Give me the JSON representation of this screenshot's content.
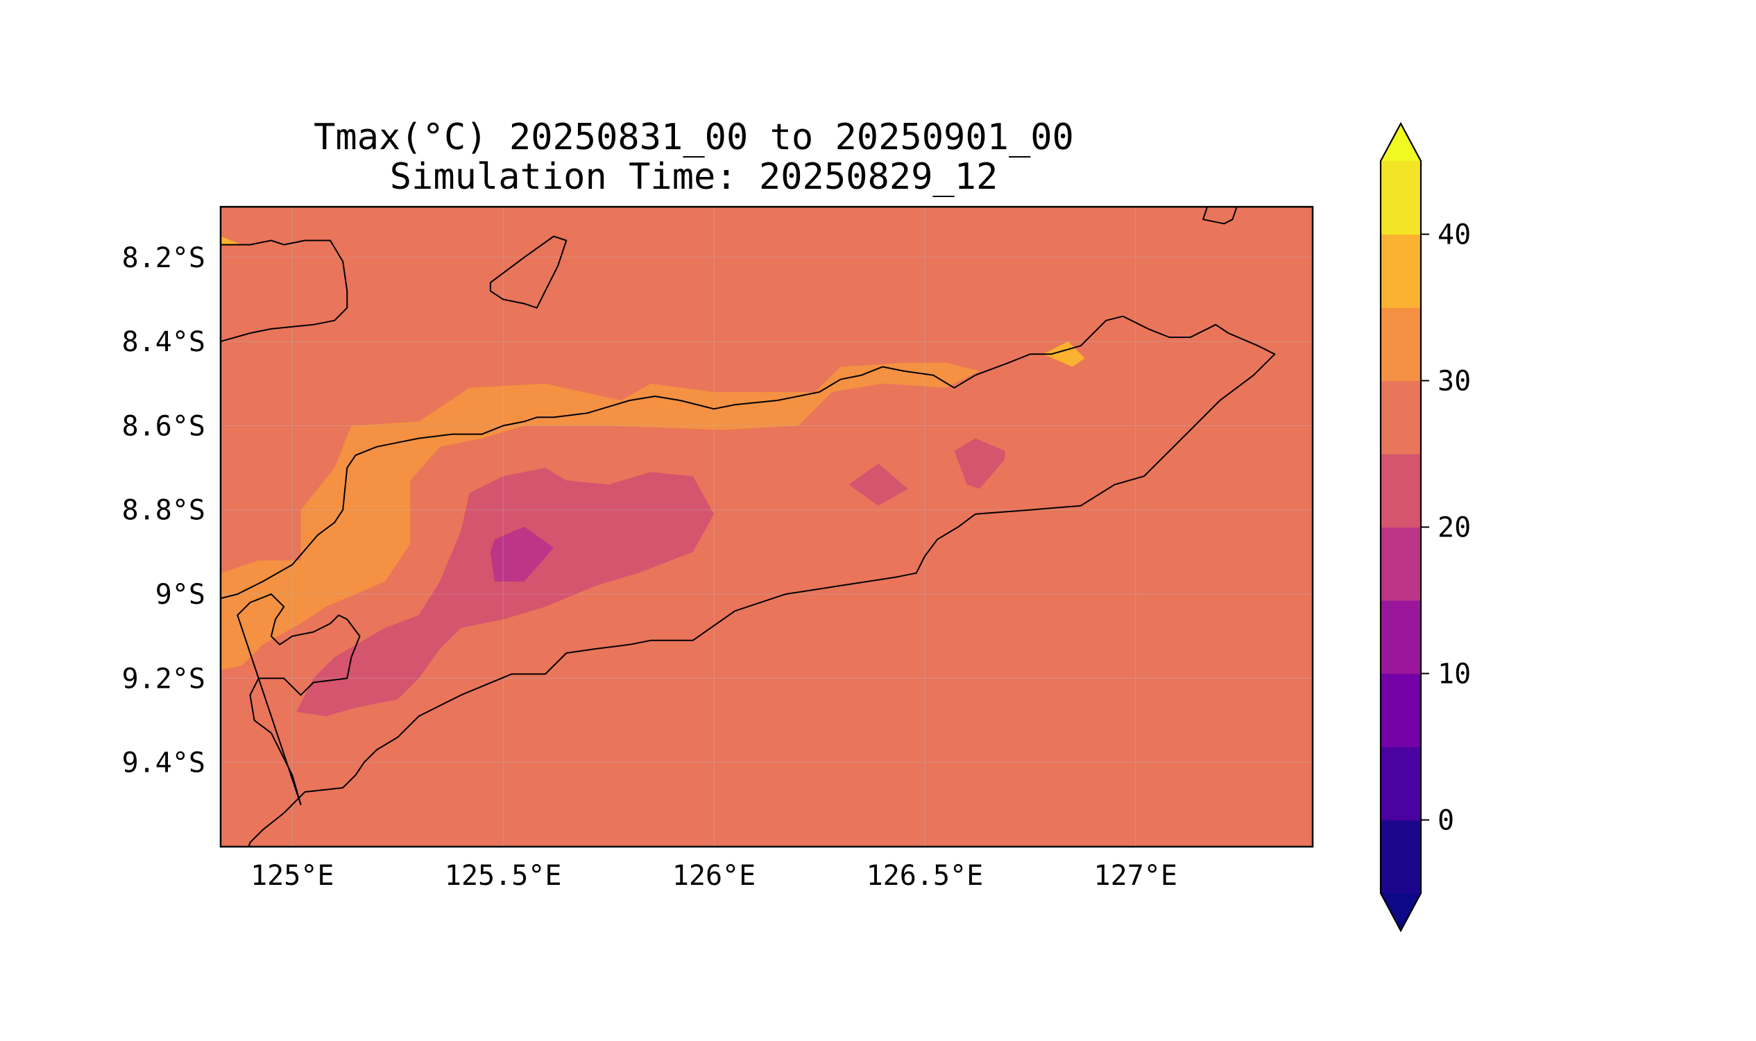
{
  "title": {
    "line1": "Tmax(°C) 20250831_00 to 20250901_00",
    "line2": "Simulation Time: 20250829_12"
  },
  "colors": {
    "contour_25_30": "#e9755a",
    "contour_30_35": "#f49142",
    "contour_35_40": "#fbb230",
    "contour_20_25": "#d5546e",
    "contour_15_20": "#bc3587"
  },
  "chart_data": {
    "type": "heatmap",
    "variable": "Tmax(°C)",
    "projection": "lon-lat",
    "xlim": [
      124.83,
      127.42
    ],
    "ylim": [
      -9.6,
      -8.08
    ],
    "grid": true,
    "lon_ticks": [
      {
        "value": 125.0,
        "label": "125°E"
      },
      {
        "value": 125.5,
        "label": "125.5°E"
      },
      {
        "value": 126.0,
        "label": "126°E"
      },
      {
        "value": 126.5,
        "label": "126.5°E"
      },
      {
        "value": 127.0,
        "label": "127°E"
      }
    ],
    "lat_ticks": [
      {
        "value": -8.2,
        "label": "8.2°S"
      },
      {
        "value": -8.4,
        "label": "8.4°S"
      },
      {
        "value": -8.6,
        "label": "8.6°S"
      },
      {
        "value": -8.8,
        "label": "8.8°S"
      },
      {
        "value": -9.0,
        "label": "9°S"
      },
      {
        "value": -9.2,
        "label": "9.2°S"
      },
      {
        "value": -9.4,
        "label": "9.4°S"
      }
    ],
    "colorbar": {
      "levels": [
        -5,
        0,
        5,
        10,
        15,
        20,
        25,
        30,
        35,
        40,
        45
      ],
      "colors": [
        "#1d068e",
        "#4a02a0",
        "#7401a8",
        "#9a179b",
        "#bc3587",
        "#d5546e",
        "#e9755a",
        "#f49142",
        "#fbb230",
        "#f3e425"
      ],
      "under_color": "#0d0887",
      "over_color": "#f0f921",
      "extend": "both",
      "tick_values": [
        0,
        10,
        20,
        30,
        40
      ],
      "tick_labels": [
        "0",
        "10",
        "20",
        "30",
        "40"
      ]
    },
    "background_level": [
      25,
      30
    ],
    "contours": [
      {
        "level": [
          30,
          35
        ],
        "points": [
          [
            124.83,
            -8.95
          ],
          [
            124.92,
            -8.92
          ],
          [
            125.02,
            -8.92
          ],
          [
            125.02,
            -8.8
          ],
          [
            125.1,
            -8.7
          ],
          [
            125.14,
            -8.6
          ],
          [
            125.3,
            -8.59
          ],
          [
            125.42,
            -8.51
          ],
          [
            125.6,
            -8.5
          ],
          [
            125.78,
            -8.54
          ],
          [
            125.85,
            -8.5
          ],
          [
            126.0,
            -8.52
          ],
          [
            126.24,
            -8.52
          ],
          [
            126.3,
            -8.46
          ],
          [
            126.46,
            -8.45
          ],
          [
            126.55,
            -8.45
          ],
          [
            126.63,
            -8.47
          ],
          [
            126.55,
            -8.51
          ],
          [
            126.4,
            -8.5
          ],
          [
            126.28,
            -8.52
          ],
          [
            126.2,
            -8.6
          ],
          [
            126.02,
            -8.61
          ],
          [
            125.75,
            -8.6
          ],
          [
            125.55,
            -8.6
          ],
          [
            125.45,
            -8.63
          ],
          [
            125.35,
            -8.65
          ],
          [
            125.28,
            -8.73
          ],
          [
            125.28,
            -8.88
          ],
          [
            125.22,
            -8.97
          ],
          [
            125.15,
            -9.0
          ],
          [
            125.08,
            -9.03
          ],
          [
            125.02,
            -9.07
          ],
          [
            124.93,
            -9.12
          ],
          [
            124.88,
            -9.17
          ],
          [
            124.83,
            -9.18
          ]
        ]
      },
      {
        "level": [
          35,
          40
        ],
        "points": [
          [
            126.78,
            -8.43
          ],
          [
            126.84,
            -8.4
          ],
          [
            126.88,
            -8.44
          ],
          [
            126.85,
            -8.46
          ]
        ]
      },
      {
        "level": [
          35,
          40
        ],
        "points": [
          [
            124.83,
            -8.15
          ],
          [
            124.88,
            -8.17
          ],
          [
            124.83,
            -8.17
          ]
        ]
      },
      {
        "level": [
          20,
          25
        ],
        "points": [
          [
            125.01,
            -9.28
          ],
          [
            125.05,
            -9.2
          ],
          [
            125.1,
            -9.15
          ],
          [
            125.22,
            -9.08
          ],
          [
            125.3,
            -9.05
          ],
          [
            125.35,
            -8.97
          ],
          [
            125.4,
            -8.85
          ],
          [
            125.42,
            -8.76
          ],
          [
            125.5,
            -8.72
          ],
          [
            125.6,
            -8.7
          ],
          [
            125.65,
            -8.73
          ],
          [
            125.75,
            -8.74
          ],
          [
            125.85,
            -8.71
          ],
          [
            125.95,
            -8.72
          ],
          [
            126.0,
            -8.81
          ],
          [
            125.95,
            -8.9
          ],
          [
            125.82,
            -8.95
          ],
          [
            125.72,
            -8.98
          ],
          [
            125.6,
            -9.03
          ],
          [
            125.5,
            -9.06
          ],
          [
            125.4,
            -9.08
          ],
          [
            125.35,
            -9.13
          ],
          [
            125.3,
            -9.2
          ],
          [
            125.25,
            -9.25
          ],
          [
            125.15,
            -9.27
          ],
          [
            125.08,
            -9.29
          ]
        ]
      },
      {
        "level": [
          20,
          25
        ],
        "points": [
          [
            126.32,
            -8.74
          ],
          [
            126.39,
            -8.69
          ],
          [
            126.46,
            -8.75
          ],
          [
            126.39,
            -8.79
          ]
        ]
      },
      {
        "level": [
          20,
          25
        ],
        "points": [
          [
            126.57,
            -8.66
          ],
          [
            126.62,
            -8.63
          ],
          [
            126.69,
            -8.66
          ],
          [
            126.69,
            -8.68
          ],
          [
            126.63,
            -8.75
          ],
          [
            126.6,
            -8.74
          ]
        ]
      },
      {
        "level": [
          15,
          20
        ],
        "points": [
          [
            125.48,
            -8.87
          ],
          [
            125.55,
            -8.84
          ],
          [
            125.62,
            -8.89
          ],
          [
            125.55,
            -8.97
          ],
          [
            125.48,
            -8.97
          ],
          [
            125.47,
            -8.9
          ]
        ]
      }
    ],
    "coastlines": [
      {
        "closed": false,
        "points": [
          [
            124.83,
            -9.01
          ],
          [
            124.87,
            -9.0
          ],
          [
            124.93,
            -8.97
          ],
          [
            125.0,
            -8.93
          ],
          [
            125.06,
            -8.86
          ],
          [
            125.1,
            -8.83
          ],
          [
            125.12,
            -8.8
          ],
          [
            125.13,
            -8.7
          ],
          [
            125.15,
            -8.67
          ],
          [
            125.2,
            -8.65
          ],
          [
            125.25,
            -8.64
          ],
          [
            125.3,
            -8.63
          ],
          [
            125.38,
            -8.62
          ],
          [
            125.45,
            -8.62
          ],
          [
            125.5,
            -8.6
          ],
          [
            125.55,
            -8.59
          ],
          [
            125.58,
            -8.58
          ],
          [
            125.62,
            -8.58
          ],
          [
            125.7,
            -8.57
          ],
          [
            125.8,
            -8.54
          ],
          [
            125.86,
            -8.53
          ],
          [
            125.92,
            -8.54
          ],
          [
            126.0,
            -8.56
          ],
          [
            126.05,
            -8.55
          ],
          [
            126.15,
            -8.54
          ],
          [
            126.25,
            -8.52
          ],
          [
            126.3,
            -8.49
          ],
          [
            126.35,
            -8.48
          ],
          [
            126.4,
            -8.46
          ],
          [
            126.45,
            -8.47
          ],
          [
            126.52,
            -8.48
          ],
          [
            126.57,
            -8.51
          ],
          [
            126.62,
            -8.48
          ],
          [
            126.7,
            -8.45
          ],
          [
            126.75,
            -8.43
          ],
          [
            126.8,
            -8.43
          ],
          [
            126.87,
            -8.41
          ],
          [
            126.93,
            -8.35
          ],
          [
            126.97,
            -8.34
          ],
          [
            127.03,
            -8.37
          ],
          [
            127.08,
            -8.39
          ],
          [
            127.13,
            -8.39
          ],
          [
            127.19,
            -8.36
          ],
          [
            127.22,
            -8.38
          ],
          [
            127.29,
            -8.41
          ],
          [
            127.33,
            -8.43
          ],
          [
            127.28,
            -8.48
          ],
          [
            127.2,
            -8.54
          ],
          [
            127.15,
            -8.59
          ],
          [
            127.09,
            -8.65
          ],
          [
            127.02,
            -8.72
          ],
          [
            126.95,
            -8.74
          ],
          [
            126.87,
            -8.79
          ],
          [
            126.75,
            -8.8
          ],
          [
            126.62,
            -8.81
          ],
          [
            126.58,
            -8.84
          ],
          [
            126.53,
            -8.87
          ],
          [
            126.5,
            -8.91
          ],
          [
            126.48,
            -8.95
          ],
          [
            126.43,
            -8.96
          ],
          [
            126.3,
            -8.98
          ],
          [
            126.17,
            -9.0
          ],
          [
            126.05,
            -9.04
          ],
          [
            125.95,
            -9.11
          ],
          [
            125.85,
            -9.11
          ],
          [
            125.8,
            -9.12
          ],
          [
            125.72,
            -9.13
          ],
          [
            125.65,
            -9.14
          ],
          [
            125.6,
            -9.19
          ],
          [
            125.52,
            -9.19
          ],
          [
            125.4,
            -9.24
          ],
          [
            125.3,
            -9.29
          ],
          [
            125.25,
            -9.34
          ],
          [
            125.2,
            -9.37
          ],
          [
            125.17,
            -9.4
          ],
          [
            125.15,
            -9.43
          ],
          [
            125.12,
            -9.46
          ],
          [
            125.03,
            -9.47
          ],
          [
            124.98,
            -9.52
          ],
          [
            124.93,
            -9.56
          ],
          [
            124.9,
            -9.59
          ],
          [
            124.89,
            -9.62
          ]
        ]
      },
      {
        "closed": true,
        "points": [
          [
            124.87,
            -9.05
          ],
          [
            124.9,
            -9.02
          ],
          [
            124.95,
            -9.0
          ],
          [
            124.98,
            -9.03
          ],
          [
            124.96,
            -9.06
          ],
          [
            124.95,
            -9.1
          ],
          [
            124.97,
            -9.12
          ],
          [
            125.0,
            -9.1
          ],
          [
            125.05,
            -9.09
          ],
          [
            125.09,
            -9.07
          ],
          [
            125.11,
            -9.05
          ],
          [
            125.13,
            -9.06
          ],
          [
            125.16,
            -9.1
          ],
          [
            125.14,
            -9.15
          ],
          [
            125.13,
            -9.2
          ],
          [
            125.05,
            -9.21
          ],
          [
            125.02,
            -9.24
          ],
          [
            124.98,
            -9.2
          ],
          [
            124.92,
            -9.2
          ],
          [
            124.9,
            -9.24
          ],
          [
            124.91,
            -9.3
          ],
          [
            124.95,
            -9.33
          ],
          [
            124.97,
            -9.37
          ],
          [
            125.0,
            -9.43
          ],
          [
            125.02,
            -9.5
          ]
        ]
      },
      {
        "closed": false,
        "points": [
          [
            124.83,
            -8.17
          ],
          [
            124.9,
            -8.17
          ],
          [
            124.95,
            -8.16
          ],
          [
            124.98,
            -8.17
          ],
          [
            125.03,
            -8.16
          ],
          [
            125.09,
            -8.16
          ],
          [
            125.12,
            -8.21
          ],
          [
            125.13,
            -8.28
          ],
          [
            125.13,
            -8.32
          ],
          [
            125.1,
            -8.35
          ],
          [
            125.05,
            -8.36
          ],
          [
            124.95,
            -8.37
          ],
          [
            124.9,
            -8.38
          ],
          [
            124.83,
            -8.4
          ]
        ]
      },
      {
        "closed": true,
        "points": [
          [
            125.47,
            -8.26
          ],
          [
            125.55,
            -8.2
          ],
          [
            125.62,
            -8.15
          ],
          [
            125.65,
            -8.16
          ],
          [
            125.63,
            -8.22
          ],
          [
            125.6,
            -8.28
          ],
          [
            125.58,
            -8.32
          ],
          [
            125.55,
            -8.31
          ],
          [
            125.5,
            -8.3
          ],
          [
            125.47,
            -8.28
          ]
        ]
      },
      {
        "closed": false,
        "points": [
          [
            127.17,
            -8.08
          ],
          [
            127.16,
            -8.11
          ],
          [
            127.21,
            -8.12
          ],
          [
            127.23,
            -8.11
          ],
          [
            127.24,
            -8.08
          ]
        ]
      }
    ]
  }
}
